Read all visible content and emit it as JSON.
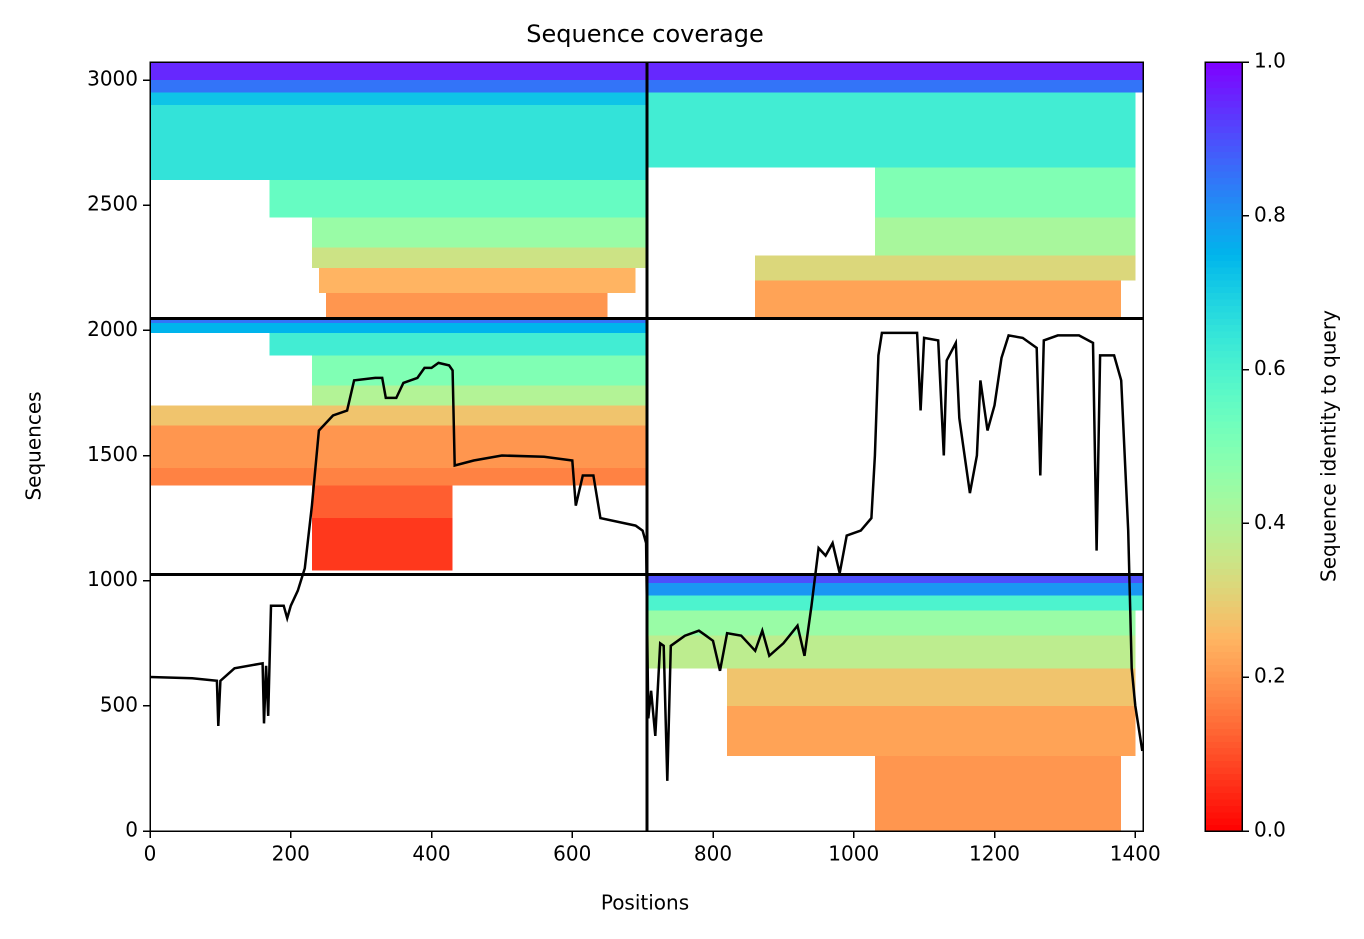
{
  "chart_data": {
    "type": "coverage",
    "title": "Sequence coverage",
    "xlabel": "Positions",
    "ylabel": "Sequences",
    "colorbar_label": "Sequence identity to query",
    "colormap": "rainbow_r",
    "xlim": [
      0,
      1411
    ],
    "ylim": [
      0,
      3072
    ],
    "xticks": [
      0,
      200,
      400,
      600,
      800,
      1000,
      1200,
      1400
    ],
    "yticks": [
      0,
      500,
      1000,
      1500,
      2000,
      2500,
      3000
    ],
    "clim": [
      0,
      1
    ],
    "cticks": [
      {
        "value": 0,
        "label": "0.0"
      },
      {
        "value": 0.2,
        "label": "0.2"
      },
      {
        "value": 0.4,
        "label": "0.4"
      },
      {
        "value": 0.6,
        "label": "0.6"
      },
      {
        "value": 0.8,
        "label": "0.8"
      },
      {
        "value": 1,
        "label": "1.0"
      }
    ],
    "boundaries": {
      "x": [
        706
      ],
      "y": [
        1024,
        2048
      ]
    },
    "bands": [
      {
        "x0": 0,
        "x1": 706,
        "y0": 3000,
        "y1": 3072,
        "identity": 0.95
      },
      {
        "x0": 0,
        "x1": 706,
        "y0": 2950,
        "y1": 3000,
        "identity": 0.85
      },
      {
        "x0": 0,
        "x1": 706,
        "y0": 2900,
        "y1": 2950,
        "identity": 0.72
      },
      {
        "x0": 0,
        "x1": 706,
        "y0": 2600,
        "y1": 2900,
        "identity": 0.65
      },
      {
        "x0": 170,
        "x1": 706,
        "y0": 2450,
        "y1": 2600,
        "identity": 0.55
      },
      {
        "x0": 230,
        "x1": 706,
        "y0": 2330,
        "y1": 2450,
        "identity": 0.45
      },
      {
        "x0": 230,
        "x1": 706,
        "y0": 2250,
        "y1": 2330,
        "identity": 0.35
      },
      {
        "x0": 240,
        "x1": 690,
        "y0": 2150,
        "y1": 2250,
        "identity": 0.25
      },
      {
        "x0": 250,
        "x1": 650,
        "y0": 2048,
        "y1": 2150,
        "identity": 0.2
      },
      {
        "x0": 706,
        "x1": 1411,
        "y0": 3000,
        "y1": 3072,
        "identity": 0.95
      },
      {
        "x0": 706,
        "x1": 1411,
        "y0": 2950,
        "y1": 3000,
        "identity": 0.85
      },
      {
        "x0": 706,
        "x1": 1400,
        "y0": 2650,
        "y1": 2950,
        "identity": 0.62
      },
      {
        "x0": 1030,
        "x1": 1400,
        "y0": 2450,
        "y1": 2650,
        "identity": 0.5
      },
      {
        "x0": 1030,
        "x1": 1400,
        "y0": 2300,
        "y1": 2450,
        "identity": 0.42
      },
      {
        "x0": 860,
        "x1": 1400,
        "y0": 2200,
        "y1": 2300,
        "identity": 0.32
      },
      {
        "x0": 860,
        "x1": 1380,
        "y0": 2048,
        "y1": 2200,
        "identity": 0.22
      },
      {
        "x0": 0,
        "x1": 706,
        "y0": 2030,
        "y1": 2048,
        "identity": 0.85
      },
      {
        "x0": 0,
        "x1": 706,
        "y0": 1990,
        "y1": 2030,
        "identity": 0.75
      },
      {
        "x0": 170,
        "x1": 706,
        "y0": 1900,
        "y1": 1990,
        "identity": 0.62
      },
      {
        "x0": 230,
        "x1": 706,
        "y0": 1780,
        "y1": 1900,
        "identity": 0.5
      },
      {
        "x0": 230,
        "x1": 706,
        "y0": 1700,
        "y1": 1780,
        "identity": 0.4
      },
      {
        "x0": 0,
        "x1": 706,
        "y0": 1620,
        "y1": 1700,
        "identity": 0.28
      },
      {
        "x0": 0,
        "x1": 706,
        "y0": 1450,
        "y1": 1620,
        "identity": 0.2
      },
      {
        "x0": 0,
        "x1": 706,
        "y0": 1380,
        "y1": 1450,
        "identity": 0.17
      },
      {
        "x0": 230,
        "x1": 430,
        "y0": 1250,
        "y1": 1380,
        "identity": 0.12
      },
      {
        "x0": 230,
        "x1": 430,
        "y0": 1040,
        "y1": 1250,
        "identity": 0.07
      },
      {
        "x0": 706,
        "x1": 1411,
        "y0": 990,
        "y1": 1024,
        "identity": 0.9
      },
      {
        "x0": 706,
        "x1": 1411,
        "y0": 940,
        "y1": 990,
        "identity": 0.8
      },
      {
        "x0": 706,
        "x1": 1411,
        "y0": 880,
        "y1": 940,
        "identity": 0.6
      },
      {
        "x0": 706,
        "x1": 1400,
        "y0": 780,
        "y1": 880,
        "identity": 0.45
      },
      {
        "x0": 706,
        "x1": 1400,
        "y0": 650,
        "y1": 780,
        "identity": 0.38
      },
      {
        "x0": 820,
        "x1": 1400,
        "y0": 500,
        "y1": 650,
        "identity": 0.28
      },
      {
        "x0": 820,
        "x1": 1400,
        "y0": 300,
        "y1": 500,
        "identity": 0.22
      },
      {
        "x0": 1030,
        "x1": 1380,
        "y0": 0,
        "y1": 300,
        "identity": 0.2
      }
    ],
    "coverage": {
      "x": [
        0,
        60,
        95,
        97,
        100,
        120,
        160,
        162,
        165,
        168,
        172,
        190,
        195,
        200,
        210,
        220,
        230,
        240,
        260,
        280,
        290,
        320,
        330,
        335,
        350,
        360,
        380,
        390,
        400,
        410,
        425,
        430,
        433,
        460,
        480,
        500,
        560,
        600,
        605,
        615,
        630,
        640,
        690,
        700,
        705,
        708,
        712,
        718,
        725,
        730,
        735,
        740,
        760,
        780,
        790,
        800,
        810,
        820,
        840,
        860,
        870,
        880,
        900,
        920,
        930,
        940,
        950,
        960,
        970,
        980,
        990,
        1010,
        1025,
        1030,
        1035,
        1040,
        1090,
        1095,
        1100,
        1120,
        1128,
        1132,
        1145,
        1150,
        1155,
        1165,
        1175,
        1180,
        1190,
        1200,
        1210,
        1220,
        1240,
        1260,
        1265,
        1270,
        1290,
        1320,
        1340,
        1345,
        1350,
        1370,
        1380,
        1390,
        1395,
        1400,
        1410
      ],
      "values": [
        615,
        610,
        600,
        420,
        600,
        650,
        670,
        430,
        660,
        460,
        900,
        900,
        850,
        900,
        960,
        1050,
        1300,
        1600,
        1660,
        1680,
        1800,
        1810,
        1810,
        1730,
        1730,
        1790,
        1810,
        1850,
        1850,
        1870,
        1860,
        1840,
        1460,
        1480,
        1490,
        1500,
        1495,
        1480,
        1300,
        1420,
        1420,
        1250,
        1220,
        1200,
        1150,
        450,
        560,
        380,
        750,
        740,
        200,
        740,
        780,
        800,
        780,
        760,
        640,
        790,
        780,
        720,
        800,
        700,
        750,
        820,
        700,
        900,
        1130,
        1100,
        1150,
        1030,
        1180,
        1200,
        1250,
        1500,
        1900,
        1990,
        1990,
        1680,
        1970,
        1960,
        1500,
        1880,
        1950,
        1650,
        1550,
        1350,
        1500,
        1800,
        1600,
        1700,
        1890,
        1980,
        1970,
        1930,
        1420,
        1960,
        1980,
        1980,
        1950,
        1120,
        1900,
        1900,
        1800,
        1200,
        650,
        500,
        320
      ]
    }
  }
}
